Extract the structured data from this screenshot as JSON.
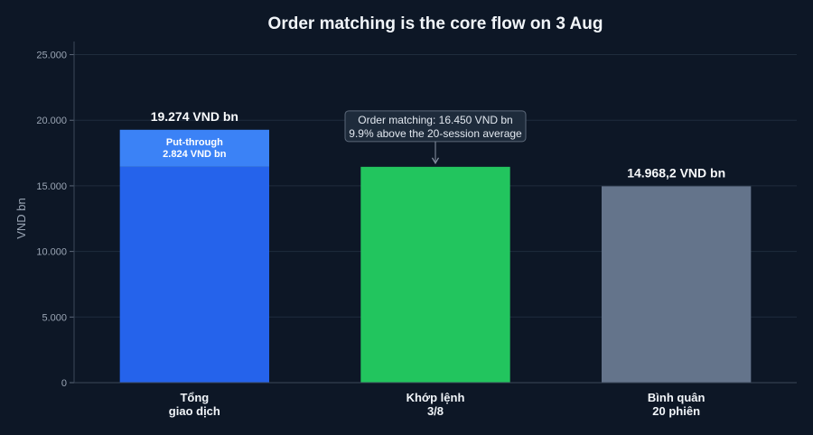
{
  "chart_data": {
    "type": "bar",
    "title": "Order matching is the core flow on 3 Aug",
    "ylabel": "VND bn",
    "ylim": [
      0,
      26000
    ],
    "yticks": [
      0,
      5000,
      10000,
      15000,
      20000,
      25000
    ],
    "ytick_labels": [
      "0",
      "5.000",
      "10.000",
      "15.000",
      "20.000",
      "25.000"
    ],
    "grid": true,
    "categories": [
      [
        "Tổng",
        "giao dịch"
      ],
      [
        "Khớp lệnh",
        "3/8"
      ],
      [
        "Bình quân",
        "20 phiên"
      ]
    ],
    "bars": [
      {
        "total_label": "19.274 VND bn",
        "segments": [
          {
            "value": 16450,
            "color": "#2563eb",
            "label": []
          },
          {
            "value": 2824,
            "color": "#3b82f6",
            "label": [
              "Put-through",
              "2.824 VND bn"
            ]
          }
        ]
      },
      {
        "total_label": "",
        "segments": [
          {
            "value": 16450,
            "color": "#22c55e",
            "label": []
          }
        ]
      },
      {
        "total_label": "14.968,2 VND bn",
        "segments": [
          {
            "value": 14968.2,
            "color": "#64748b",
            "label": []
          }
        ]
      }
    ],
    "annotation": {
      "bar": 1,
      "lines": [
        "Order matching: 16.450 VND bn",
        "9.9% above the 20-session average"
      ]
    }
  }
}
